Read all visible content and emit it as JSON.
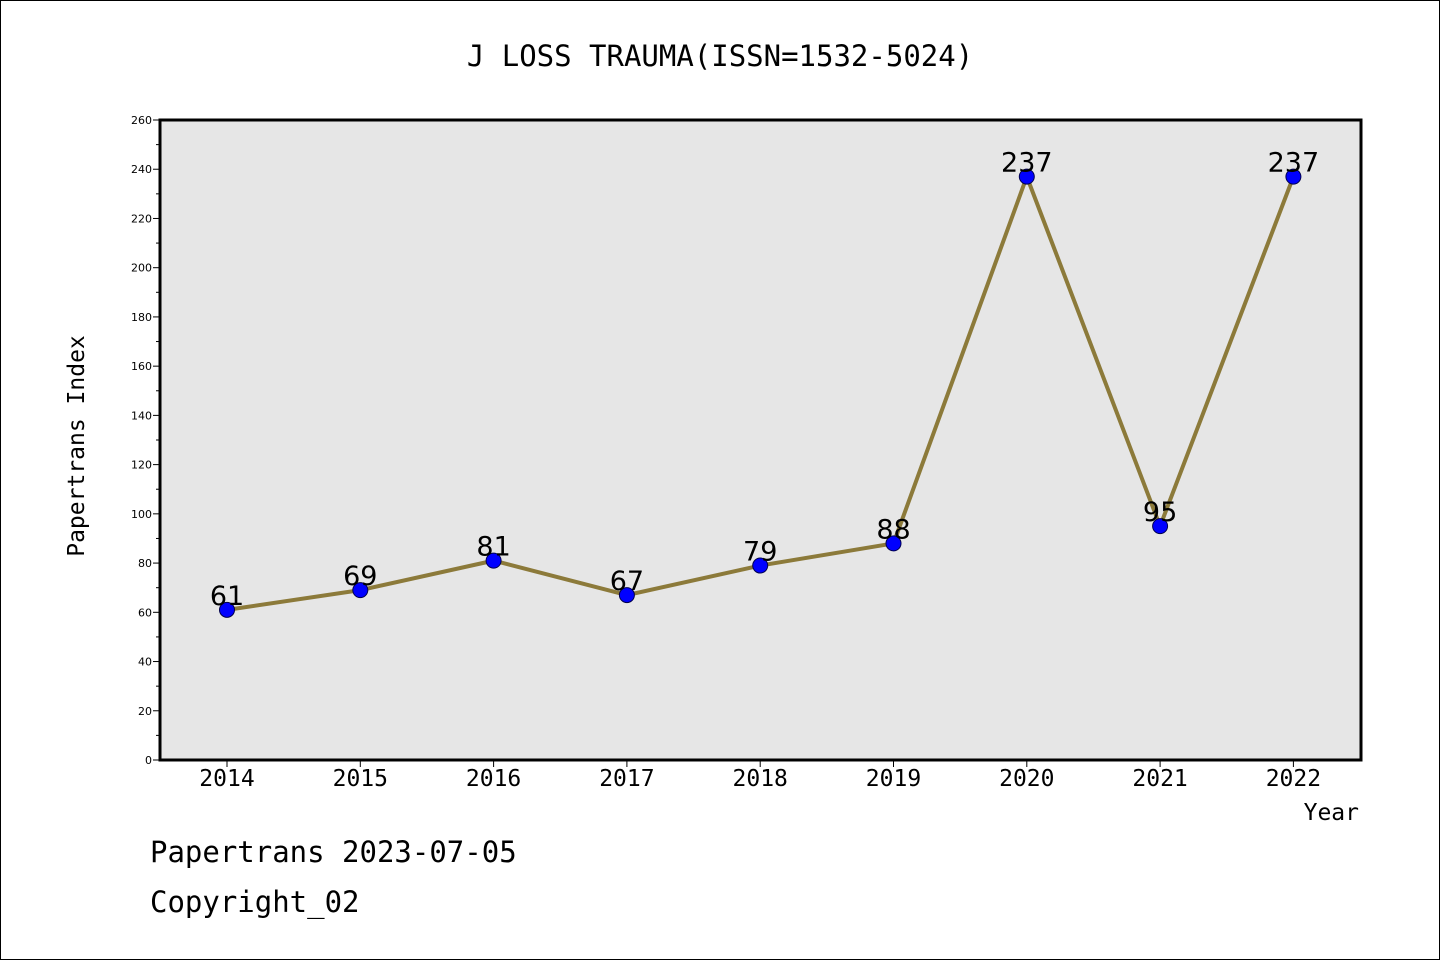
{
  "chart_data": {
    "type": "line",
    "title": "J LOSS TRAUMA(ISSN=1532-5024)",
    "xlabel": "Year",
    "ylabel": "Papertrans Index",
    "categories": [
      "2014",
      "2015",
      "2016",
      "2017",
      "2018",
      "2019",
      "2020",
      "2021",
      "2022"
    ],
    "series": [
      {
        "values": [
          61,
          69,
          81,
          67,
          79,
          88,
          237,
          95,
          237
        ]
      }
    ],
    "ylim": [
      0,
      260
    ],
    "yticks": [
      0,
      20,
      40,
      60,
      80,
      100,
      120,
      140,
      160,
      180,
      200,
      220,
      240,
      260
    ],
    "grid": false,
    "colors": {
      "line": "#8c7a3a",
      "marker": "#0000ff",
      "plot_bg": "#e6e6e6"
    }
  },
  "footer": {
    "line1": "Papertrans 2023-07-05",
    "line2": "Copyright_02"
  }
}
